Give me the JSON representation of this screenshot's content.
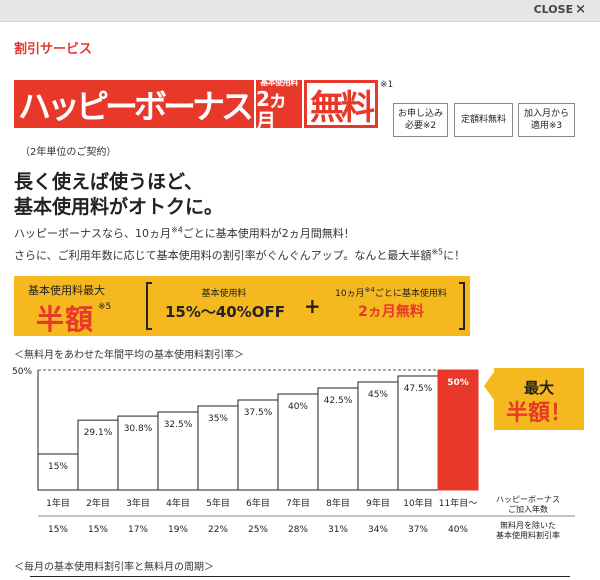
{
  "topbar": {
    "close_label": "CLOSE",
    "close_icon": "×"
  },
  "section_title": "割引サービス",
  "logo": {
    "main_text": "ハッピーボーナス",
    "small_text": "基本使用料",
    "months_text": "2ヵ月",
    "free_text": "無料",
    "note": "※1"
  },
  "tags": [
    {
      "line1": "お申し込み",
      "line2": "必要※2"
    },
    {
      "line1": "定額料無料",
      "line2": ""
    },
    {
      "line1": "加入月から",
      "line2": "適用※3"
    }
  ],
  "contract_note": "（2年単位のご契約）",
  "headline": {
    "line1": "長く使えば使うほど、",
    "line2": "基本使用料がオトクに。"
  },
  "para1": {
    "pre": "ハッピーボーナスなら、10ヵ月",
    "sup": "※4",
    "post": "ごとに基本使用料が2ヵ月間無料！"
  },
  "para2": {
    "pre": "さらに、ご利用年数に応じて基本使用料の割引率がぐんぐんアップ。なんと最大半額",
    "sup": "※5",
    "post": "に！"
  },
  "banner": {
    "max_label": "基本使用料最大",
    "half": "半額",
    "half_sup": "※5",
    "part1_label": "基本使用料",
    "part1_value": "15%～40%OFF",
    "plus": "+",
    "part2_label_pre": "10ヵ月",
    "part2_label_sup": "※4",
    "part2_label_post": "ごとに基本使用料",
    "part2_value": "2ヵ月無料"
  },
  "chart_caption": "＜無料月をあわせた年間平均の基本使用料割引率＞",
  "chart_caption2": "＜毎月の基本使用料割引率と無料月の周期＞",
  "chart_data": {
    "type": "bar",
    "y_top_label": "50%",
    "ylim": [
      0,
      50
    ],
    "categories": [
      "1年目",
      "2年目",
      "3年目",
      "4年目",
      "5年目",
      "6年目",
      "7年目",
      "8年目",
      "9年目",
      "10年目",
      "11年目～"
    ],
    "values": [
      15,
      29.1,
      30.8,
      32.5,
      35,
      37.5,
      40,
      42.5,
      45,
      47.5,
      50
    ],
    "labels": [
      "15%",
      "29.1%",
      "30.8%",
      "32.5%",
      "35%",
      "37.5%",
      "40%",
      "42.5%",
      "45%",
      "47.5%",
      "50%"
    ],
    "excl_rates": [
      "15%",
      "15%",
      "17%",
      "19%",
      "22%",
      "25%",
      "28%",
      "31%",
      "34%",
      "37%",
      "40%"
    ],
    "row_label_years_1": "ハッピーボーナス",
    "row_label_years_2": "ご加入年数",
    "row_label_rate_1": "無料月を除いた",
    "row_label_rate_2": "基本使用料割引率",
    "callout_line1": "最大",
    "callout_line2": "半額！",
    "highlight_color": "#e8382a",
    "callout_color": "#f5b81e"
  }
}
